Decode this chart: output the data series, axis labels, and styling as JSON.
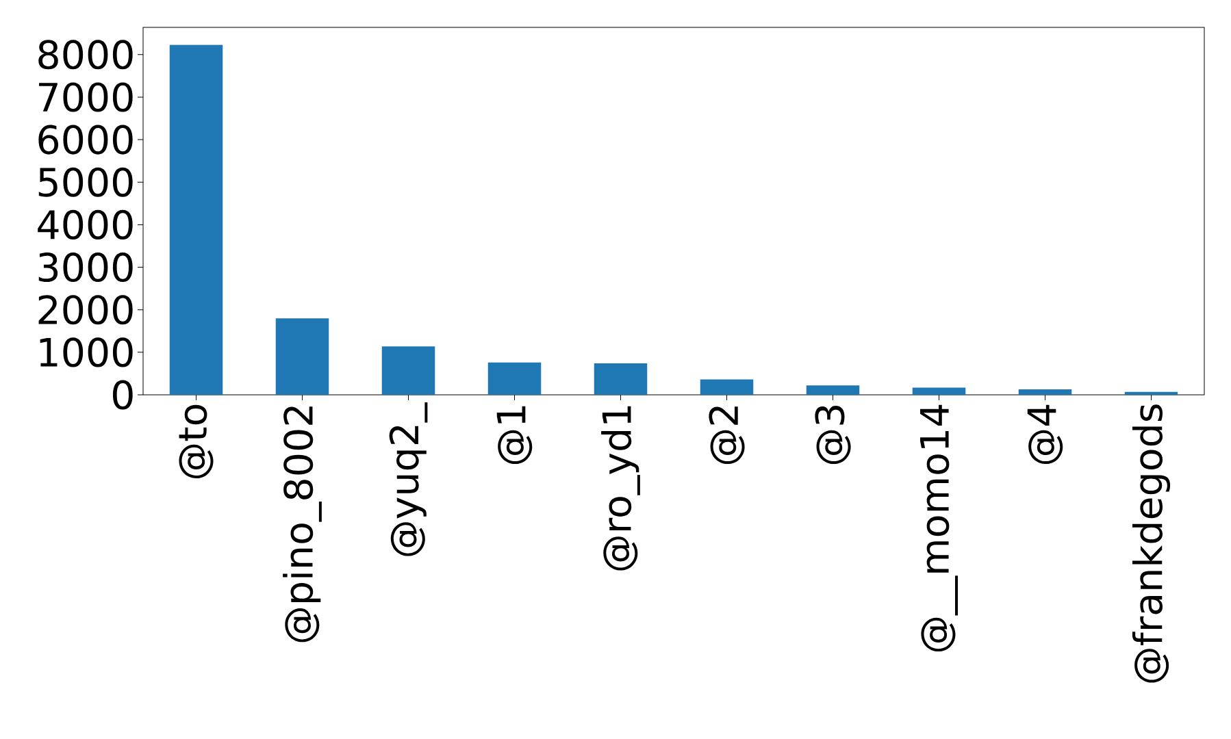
{
  "chart_data": {
    "type": "bar",
    "categories": [
      "@to",
      "@pino_8002",
      "@yuq2_",
      "@1",
      "@ro_yd1",
      "@2",
      "@3",
      "@__momo14",
      "@4",
      "@frankdegods"
    ],
    "values": [
      8230,
      1800,
      1140,
      760,
      740,
      360,
      220,
      170,
      130,
      70
    ],
    "color": "#1f77b4",
    "ylim": [
      0,
      8640
    ],
    "yticks": [
      0,
      1000,
      2000,
      3000,
      4000,
      5000,
      6000,
      7000,
      8000
    ]
  }
}
